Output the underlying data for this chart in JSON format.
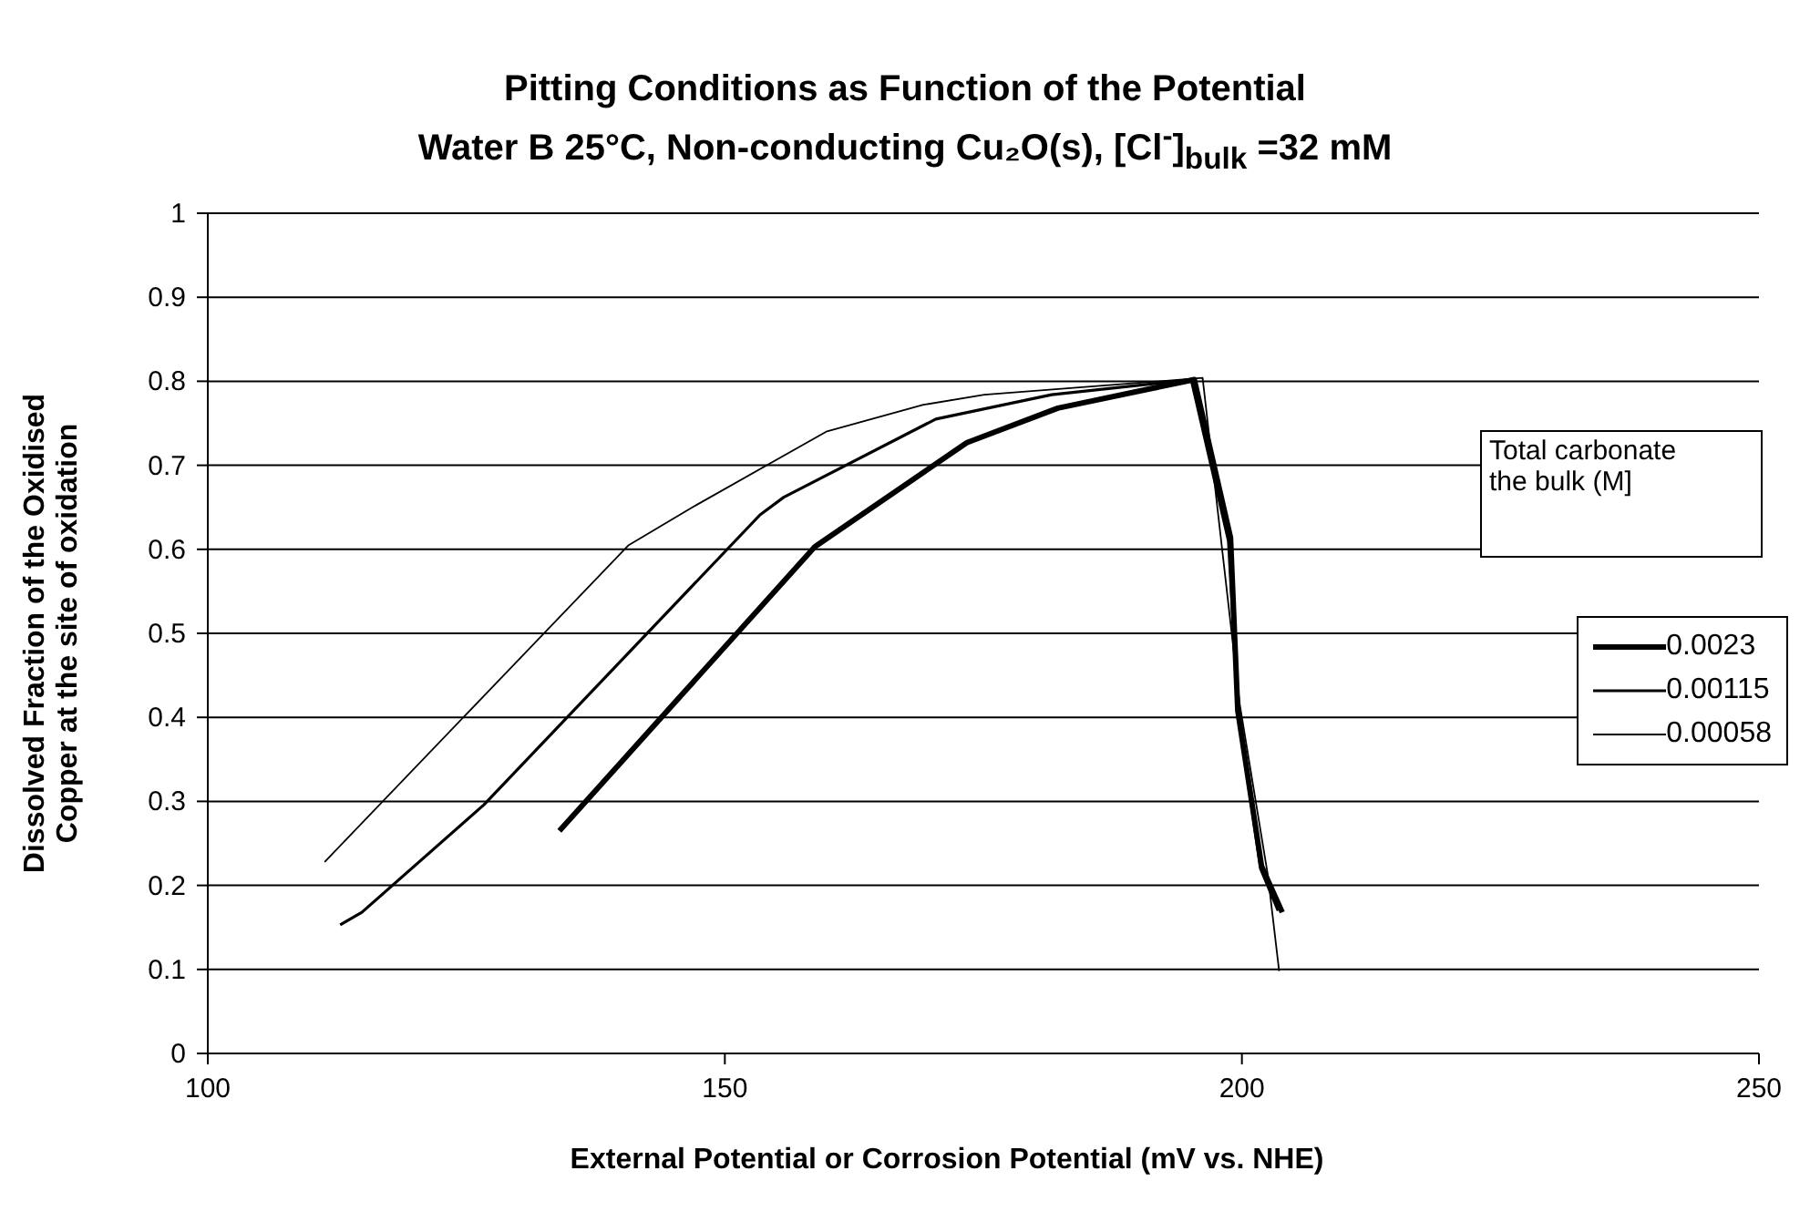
{
  "chart_data": {
    "type": "line",
    "title": "Pitting Conditions as Function of the Potential",
    "subtitle": "Water B 25°C, Non-conducting Cu₂O(s), [Cl$^{-}$]$_{bulk}$ =32 mM",
    "xlabel": "External Potential or Corrosion Potential (mV vs. NHE)",
    "ylabel": "Dissolved Fraction of the Oxidised\nCopper at the site of oxidation",
    "legend_title": "Total carbonate\nthe bulk (M]",
    "xlim": [
      100,
      250
    ],
    "xticks": [
      100,
      150,
      200,
      250
    ],
    "ylim": [
      0,
      1
    ],
    "yticks": [
      0,
      0.1,
      0.2,
      0.3,
      0.4,
      0.5,
      0.6,
      0.7,
      0.8,
      0.9,
      1
    ],
    "grid": "y",
    "legend": "right",
    "marker": "none",
    "line_style": "solid",
    "series": [
      {
        "name": "0.0023",
        "color": "#000000",
        "x": [
          134.0,
          158.7,
          173.4,
          182.2,
          191.5,
          195.4,
          198.9,
          199.6,
          201.9,
          203.9
        ],
        "values": [
          0.265,
          0.603,
          0.727,
          0.768,
          0.792,
          0.802,
          0.614,
          0.408,
          0.223,
          0.168
        ]
      },
      {
        "name": "0.00115",
        "color": "#000000",
        "x": [
          112.8,
          114.9,
          126.7,
          153.4,
          155.7,
          170.4,
          181.6,
          195.1,
          198.7,
          199.6,
          201.8,
          203.5
        ],
        "values": [
          0.153,
          0.168,
          0.296,
          0.641,
          0.662,
          0.755,
          0.784,
          0.802,
          0.61,
          0.41,
          0.22,
          0.17
        ]
      },
      {
        "name": "0.00058",
        "color": "#000000",
        "x": [
          111.3,
          140.7,
          147.0,
          159.8,
          169.2,
          175.1,
          196.2,
          199.8,
          202.5,
          203.6
        ],
        "values": [
          0.228,
          0.605,
          0.651,
          0.74,
          0.772,
          0.784,
          0.804,
          0.415,
          0.213,
          0.098
        ]
      }
    ]
  }
}
